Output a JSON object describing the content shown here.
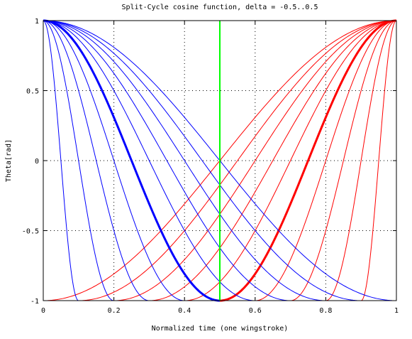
{
  "chart_data": {
    "type": "line",
    "title": "Split-Cycle cosine function, delta = -0.5..0.5",
    "xlabel": "Normalized time (one wingstroke)",
    "ylabel": "Theta[rad]",
    "xlim": [
      0,
      1
    ],
    "ylim": [
      -1,
      1
    ],
    "xticks": [
      "0",
      "0.2",
      "0.4",
      "0.6",
      "0.8",
      "1"
    ],
    "yticks": [
      "1",
      "0.5",
      "0",
      "-0.5",
      "-1"
    ],
    "grid": true,
    "colors": {
      "downstroke": "#0000ff",
      "upstroke": "#ff0000",
      "marker": "#00ff00"
    },
    "marker_x": 0.5,
    "delta_values": [
      -0.5,
      -0.4,
      -0.3,
      -0.2,
      -0.1,
      0.0,
      0.1,
      0.2,
      0.3,
      0.4,
      0.5
    ],
    "highlight_delta": 0.0,
    "function": "downstroke: theta = cos(pi*t/tau) for t <= tau; upstroke: theta = cos(pi*(t-1)/(1-tau)) for t > tau; tau = 0.5 + delta"
  }
}
